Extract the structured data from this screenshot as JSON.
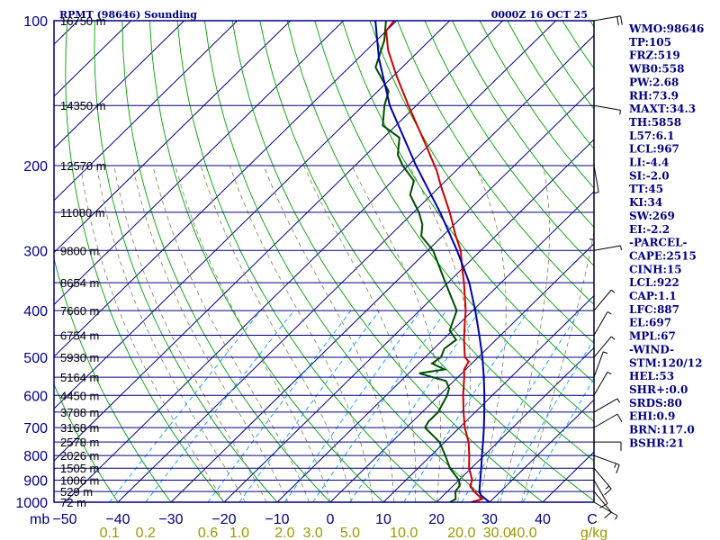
{
  "header": {
    "station": "RPMT (98646) Sounding",
    "time": "0000Z 16 OCT 25"
  },
  "indices": [
    "WMO:98646",
    "TP:105",
    "FRZ:519",
    "WB0:558",
    "PW:2.68",
    "RH:73.9",
    "MAXT:34.3",
    "TH:5858",
    "L57:6.1",
    "LCL:967",
    "LI:-4.4",
    "SI:-2.0",
    "TT:45",
    "KI:34",
    "SW:269",
    "EI:-2.2",
    "-PARCEL-",
    "CAPE:2515",
    "CINH:15",
    "LCL:922",
    "CAP:1.1",
    "LFC:887",
    "EL:697",
    "MPL:67",
    "-WIND-",
    "STM:120/12",
    "HEL:53",
    "SHR+:0.0",
    "SRDS:80",
    "EHI:0.9",
    "BRN:117.0",
    "BSHR:21"
  ],
  "chart_data": {
    "type": "line",
    "title": "RPMT (98646) Sounding",
    "subtitle": "0000Z 16 OCT 25",
    "xlabel": "°C",
    "ylabel": "mb",
    "mixing_ratio_unit": "g/kg",
    "xlim": [
      -50,
      50
    ],
    "ylim": [
      1000,
      100
    ],
    "pressure_ticks": [
      "100",
      "200",
      "300",
      "400",
      "500",
      "600",
      "700",
      "800",
      "900",
      "1000"
    ],
    "pressure_values": [
      100,
      200,
      300,
      400,
      500,
      600,
      700,
      800,
      900,
      1000
    ],
    "temperature_ticks": [
      "−50",
      "−40",
      "−30",
      "−20",
      "−10",
      "0",
      "10",
      "20",
      "30",
      "40",
      "C"
    ],
    "temperature_values": [
      -50,
      -40,
      -30,
      -20,
      -10,
      0,
      10,
      20,
      30,
      40
    ],
    "mixing_ratio_ticks": [
      "0.1",
      "0.2",
      "0.6",
      "1.0",
      "2.0",
      "3.0",
      "5.0",
      "10.0",
      "20.0",
      "30.0",
      "40.0",
      "g/kg"
    ],
    "height_levels": [
      {
        "p": 100,
        "label": "16750 m"
      },
      {
        "p": 150,
        "label": "14350 m"
      },
      {
        "p": 200,
        "label": "12570 m"
      },
      {
        "p": 250,
        "label": "11080 m"
      },
      {
        "p": 300,
        "label": "9800 m"
      },
      {
        "p": 350,
        "label": "8654 m"
      },
      {
        "p": 400,
        "label": "7660 m"
      },
      {
        "p": 450,
        "label": "6754 m"
      },
      {
        "p": 500,
        "label": "5930 m"
      },
      {
        "p": 550,
        "label": "5164 m"
      },
      {
        "p": 600,
        "label": "4450 m"
      },
      {
        "p": 650,
        "label": "3788 m"
      },
      {
        "p": 700,
        "label": "3168 m"
      },
      {
        "p": 750,
        "label": "2578 m"
      },
      {
        "p": 800,
        "label": "2026 m"
      },
      {
        "p": 850,
        "label": "1505 m"
      },
      {
        "p": 900,
        "label": "1006 m"
      },
      {
        "p": 950,
        "label": "529 m"
      },
      {
        "p": 1000,
        "label": "72 m"
      }
    ],
    "series": [
      {
        "name": "Temperature",
        "color": "#cc0000",
        "points": [
          {
            "p": 1000,
            "t": 26.5
          },
          {
            "p": 985,
            "t": 28.0
          },
          {
            "p": 950,
            "t": 25.0
          },
          {
            "p": 925,
            "t": 23.2
          },
          {
            "p": 900,
            "t": 22.5
          },
          {
            "p": 850,
            "t": 19.6
          },
          {
            "p": 800,
            "t": 17.2
          },
          {
            "p": 750,
            "t": 14.5
          },
          {
            "p": 700,
            "t": 11.0
          },
          {
            "p": 650,
            "t": 7.8
          },
          {
            "p": 600,
            "t": 4.5
          },
          {
            "p": 550,
            "t": 1.2
          },
          {
            "p": 530,
            "t": -0.3
          },
          {
            "p": 510,
            "t": -1.0
          },
          {
            "p": 500,
            "t": -2.5
          },
          {
            "p": 460,
            "t": -6.0
          },
          {
            "p": 420,
            "t": -9.5
          },
          {
            "p": 400,
            "t": -11.3
          },
          {
            "p": 350,
            "t": -17.0
          },
          {
            "p": 320,
            "t": -21.0
          },
          {
            "p": 300,
            "t": -23.8
          },
          {
            "p": 280,
            "t": -27.5
          },
          {
            "p": 250,
            "t": -33.2
          },
          {
            "p": 220,
            "t": -40.0
          },
          {
            "p": 205,
            "t": -43.6
          },
          {
            "p": 200,
            "t": -45.0
          },
          {
            "p": 180,
            "t": -51.0
          },
          {
            "p": 150,
            "t": -61.5
          },
          {
            "p": 130,
            "t": -69.5
          },
          {
            "p": 115,
            "t": -76.0
          },
          {
            "p": 105,
            "t": -80.0
          },
          {
            "p": 100,
            "t": -80.5
          },
          {
            "p": 95,
            "t": -79.5
          }
        ]
      },
      {
        "name": "Dew Point",
        "color": "#004d00",
        "points": [
          {
            "p": 1000,
            "t": 22.5
          },
          {
            "p": 985,
            "t": 23.0
          },
          {
            "p": 950,
            "t": 21.5
          },
          {
            "p": 925,
            "t": 21.2
          },
          {
            "p": 900,
            "t": 20.0
          },
          {
            "p": 850,
            "t": 16.0
          },
          {
            "p": 800,
            "t": 12.7
          },
          {
            "p": 750,
            "t": 9.0
          },
          {
            "p": 700,
            "t": 3.5
          },
          {
            "p": 680,
            "t": 3.0
          },
          {
            "p": 650,
            "t": 3.0
          },
          {
            "p": 600,
            "t": 1.5
          },
          {
            "p": 580,
            "t": 0.5
          },
          {
            "p": 560,
            "t": -1.5
          },
          {
            "p": 540,
            "t": -8.0
          },
          {
            "p": 530,
            "t": -4.0
          },
          {
            "p": 515,
            "t": -7.5
          },
          {
            "p": 500,
            "t": -7.0
          },
          {
            "p": 480,
            "t": -8.0
          },
          {
            "p": 460,
            "t": -7.5
          },
          {
            "p": 440,
            "t": -10.5
          },
          {
            "p": 400,
            "t": -13.0
          },
          {
            "p": 350,
            "t": -20.5
          },
          {
            "p": 300,
            "t": -29.0
          },
          {
            "p": 280,
            "t": -34.0
          },
          {
            "p": 265,
            "t": -36.0
          },
          {
            "p": 250,
            "t": -39.0
          },
          {
            "p": 230,
            "t": -44.0
          },
          {
            "p": 215,
            "t": -46.0
          },
          {
            "p": 200,
            "t": -51.0
          },
          {
            "p": 190,
            "t": -54.0
          },
          {
            "p": 175,
            "t": -57.0
          },
          {
            "p": 165,
            "t": -62.5
          },
          {
            "p": 150,
            "t": -66.0
          },
          {
            "p": 140,
            "t": -68.0
          },
          {
            "p": 125,
            "t": -75.0
          },
          {
            "p": 110,
            "t": -78.5
          },
          {
            "p": 100,
            "t": -82.0
          },
          {
            "p": 95,
            "t": -84.0
          }
        ]
      },
      {
        "name": "Parcel",
        "color": "#0000aa",
        "points": [
          {
            "p": 1000,
            "t": 30.0
          },
          {
            "p": 967,
            "t": 27.0
          },
          {
            "p": 950,
            "t": 26.0
          },
          {
            "p": 900,
            "t": 24.0
          },
          {
            "p": 850,
            "t": 21.9
          },
          {
            "p": 800,
            "t": 19.6
          },
          {
            "p": 750,
            "t": 17.2
          },
          {
            "p": 700,
            "t": 14.6
          },
          {
            "p": 650,
            "t": 11.7
          },
          {
            "p": 600,
            "t": 8.5
          },
          {
            "p": 550,
            "t": 4.9
          },
          {
            "p": 500,
            "t": 0.8
          },
          {
            "p": 450,
            "t": -4.0
          },
          {
            "p": 400,
            "t": -9.5
          },
          {
            "p": 350,
            "t": -16.0
          },
          {
            "p": 300,
            "t": -24.5
          },
          {
            "p": 250,
            "t": -35.0
          },
          {
            "p": 200,
            "t": -48.5
          },
          {
            "p": 150,
            "t": -65.0
          },
          {
            "p": 120,
            "t": -76.0
          },
          {
            "p": 100,
            "t": -84.0
          },
          {
            "p": 95,
            "t": -86.0
          }
        ]
      }
    ],
    "wind_barbs": [
      {
        "p": 1000,
        "dir": 120,
        "spd": 5
      },
      {
        "p": 950,
        "dir": 140,
        "spd": 10
      },
      {
        "p": 900,
        "dir": 150,
        "spd": 10
      },
      {
        "p": 850,
        "dir": 140,
        "spd": 15
      },
      {
        "p": 800,
        "dir": 110,
        "spd": 15
      },
      {
        "p": 750,
        "dir": 90,
        "spd": 10
      },
      {
        "p": 700,
        "dir": 60,
        "spd": 10
      },
      {
        "p": 650,
        "dir": 60,
        "spd": 5
      },
      {
        "p": 600,
        "dir": 30,
        "spd": 5
      },
      {
        "p": 550,
        "dir": 20,
        "spd": 5
      },
      {
        "p": 500,
        "dir": 40,
        "spd": 5
      },
      {
        "p": 450,
        "dir": 30,
        "spd": 5
      },
      {
        "p": 400,
        "dir": 40,
        "spd": 5
      },
      {
        "p": 300,
        "dir": 80,
        "spd": 5
      },
      {
        "p": 250,
        "dir": 180,
        "spd": 5
      },
      {
        "p": 200,
        "dir": 170,
        "spd": 5
      },
      {
        "p": 150,
        "dir": 100,
        "spd": 5
      },
      {
        "p": 100,
        "dir": 80,
        "spd": 20
      }
    ]
  }
}
